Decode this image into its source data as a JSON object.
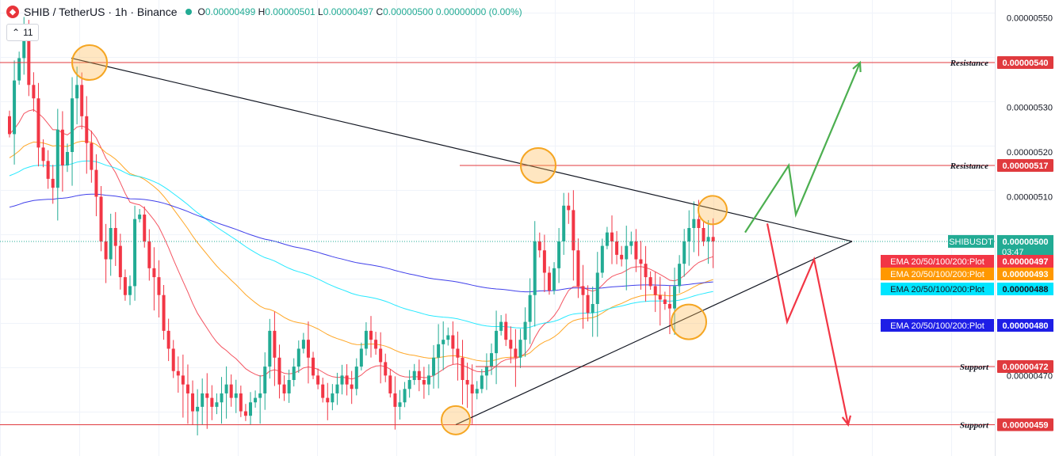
{
  "header": {
    "symbol": "SHIB / TetherUS · 1h · Binance",
    "logo": "shib-logo-icon",
    "o_label": "O",
    "o_value": "0.00000499",
    "h_label": "H",
    "h_value": "0.00000501",
    "l_label": "L",
    "l_value": "0.00000497",
    "c_label": "C",
    "c_value": "0.00000500",
    "change": "0.00000000 (0.00%)",
    "indicator_count": "11"
  },
  "chart_data": {
    "type": "candlestick",
    "ylim": [
      4.52e-06,
      5.54e-06
    ],
    "y_ticks": [
      {
        "value": 5.5e-06,
        "label": "0.00000550"
      },
      {
        "value": 5.3e-06,
        "label": "0.00000530"
      },
      {
        "value": 5.2e-06,
        "label": "0.00000520"
      },
      {
        "value": 5.1e-06,
        "label": "0.00000510"
      },
      {
        "value": 4.7e-06,
        "label": "0.00000470"
      }
    ],
    "colors": {
      "up": "#22ab94",
      "down": "#f23645"
    },
    "candle_close_path": [
      524,
      536,
      541,
      547,
      535,
      532,
      521,
      518,
      514,
      512,
      525,
      517,
      520,
      532,
      535,
      528,
      522,
      516,
      510,
      500,
      496,
      503,
      499,
      492,
      488,
      490,
      505,
      506,
      500,
      494,
      492,
      488,
      480,
      476,
      471,
      470,
      468,
      466,
      462,
      463,
      466,
      465,
      463,
      464,
      466,
      468,
      465,
      466,
      462,
      461,
      464,
      465,
      466,
      472,
      480,
      474,
      468,
      466,
      469,
      472,
      476,
      478,
      474,
      470,
      468,
      465,
      464,
      466,
      468,
      470,
      468,
      467,
      472,
      476,
      480,
      478,
      476,
      473,
      470,
      466,
      463,
      464,
      467,
      469,
      471,
      469,
      468,
      470,
      474,
      477,
      478,
      479,
      476,
      474,
      469,
      468,
      466,
      467,
      470,
      472,
      475,
      480,
      482,
      478,
      476,
      474,
      478,
      482,
      488,
      500,
      498,
      493,
      489,
      494,
      500,
      508,
      507,
      498,
      490,
      488,
      484,
      486,
      493,
      499,
      502,
      500,
      497,
      496,
      499,
      500,
      496,
      495,
      492,
      490,
      488,
      487,
      486,
      485,
      490,
      495,
      500,
      503,
      505,
      503,
      500,
      501,
      500
    ],
    "levels": [
      {
        "label": "Resistance",
        "value": 5.4e-06,
        "price_label": "0.00000540"
      },
      {
        "label": "Resistance",
        "value": 5.17e-06,
        "price_label": "0.00000517"
      },
      {
        "label": "Support",
        "value": 4.72e-06,
        "price_label": "0.00000472"
      },
      {
        "label": "Support",
        "value": 4.59e-06,
        "price_label": "0.00000459"
      }
    ],
    "current": {
      "label": "SHIBUSDT",
      "value": 5e-06,
      "price_label": "0.00000500",
      "countdown": "03:47"
    },
    "ema": [
      {
        "name": "EMA 20/50/100/200:Plot",
        "price_label": "0.00000497",
        "color": "#f23645",
        "value": 4.97e-06
      },
      {
        "name": "EMA 20/50/100/200:Plot",
        "price_label": "0.00000493",
        "color": "#ff9800",
        "value": 4.93e-06
      },
      {
        "name": "EMA 20/50/100/200:Plot",
        "price_label": "0.00000488",
        "color": "#00e5ff",
        "value": 4.88e-06
      },
      {
        "name": "EMA 20/50/100/200:Plot",
        "price_label": "0.00000480",
        "color": "#1e1ee6",
        "value": 4.8e-06
      }
    ],
    "triangle": {
      "upper": [
        [
          90,
          5.41e-06
        ],
        [
          1075,
          5e-06
        ]
      ],
      "lower": [
        [
          575,
          4.59e-06
        ],
        [
          1075,
          5e-06
        ]
      ]
    },
    "highlights": [
      {
        "x": 113,
        "value": 5.4e-06
      },
      {
        "x": 679,
        "value": 5.17e-06
      },
      {
        "x": 899,
        "value": 5.07e-06
      },
      {
        "x": 869,
        "value": 4.82e-06
      },
      {
        "x": 575,
        "value": 4.6e-06
      }
    ],
    "projections": [
      {
        "direction": "up",
        "color": "#4caf50",
        "points": [
          [
            940,
            5.02e-06
          ],
          [
            995,
            5.17e-06
          ],
          [
            1004,
            5.06e-06
          ],
          [
            1085,
            5.4e-06
          ]
        ]
      },
      {
        "direction": "down",
        "color": "#f23645",
        "points": [
          [
            968,
            5.04e-06
          ],
          [
            993,
            4.82e-06
          ],
          [
            1027,
            4.96e-06
          ],
          [
            1070,
            4.59e-06
          ]
        ]
      }
    ]
  }
}
